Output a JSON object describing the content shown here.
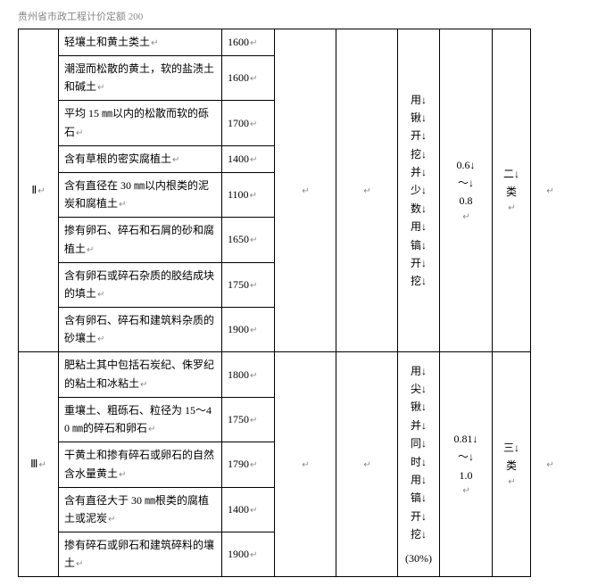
{
  "header": "贵州省市政工程计价定额 200",
  "blank_mark": "↵",
  "arrow": "↓",
  "groups": [
    {
      "category": "Ⅱ",
      "rows": [
        {
          "desc": "轻壤土和黄土类土",
          "val": "1600"
        },
        {
          "desc": "潮湿而松散的黄土，软的盐渍土和碱土",
          "val": "1600"
        },
        {
          "desc": "平均 15 ㎜以内的松散而软的砾石",
          "val": "1700"
        },
        {
          "desc": "含有草根的密实腐植土",
          "val": "1400"
        },
        {
          "desc": "含有直径在 30 ㎜以内根类的泥炭和腐植土",
          "val": "1100"
        },
        {
          "desc": "掺有卵石、碎石和石屑的砂和腐植土",
          "val": "1650"
        },
        {
          "desc": "含有卵石或碎石杂质的胶结成块的填土",
          "val": "1750"
        },
        {
          "desc": "含有卵石、碎石和建筑料杂质的砂壤土",
          "val": "1900"
        }
      ],
      "vertical_text": "用锹开挖并少数用镐开挖",
      "vertical_note": "",
      "range": "0.6↓\n～↓\n0.8",
      "class": "二↓\n类"
    },
    {
      "category": "Ⅲ",
      "rows": [
        {
          "desc": "肥粘土其中包括石炭纪、侏罗纪的粘土和冰粘土",
          "val": "1800"
        },
        {
          "desc": "重壤土、粗砾石、粒径为 15～40 ㎜的碎石和卵石",
          "val": "1750"
        },
        {
          "desc": "干黄土和掺有碎石或卵石的自然含水量黄土",
          "val": "1790"
        },
        {
          "desc": "含有直径大于 30 ㎜根类的腐植土或泥炭",
          "val": "1400"
        },
        {
          "desc": "掺有碎石或卵石和建筑碎料的壤土",
          "val": "1900"
        }
      ],
      "vertical_text": "用尖锹并同时用镐开挖",
      "vertical_note": "(30%)",
      "range": "0.81↓\n～↓\n1.0",
      "class": "三↓\n类"
    }
  ]
}
